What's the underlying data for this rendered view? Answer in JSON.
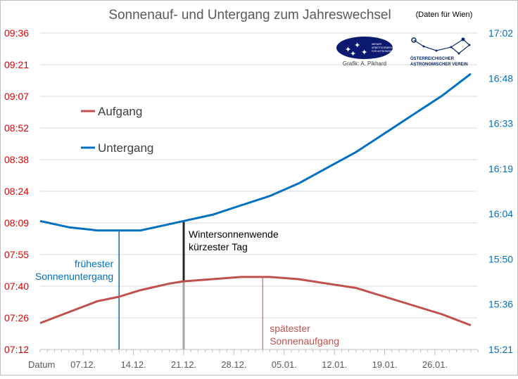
{
  "chart_data": {
    "type": "line",
    "title": "Sonnenauf- und Untergang zum Jahreswechsel",
    "subtitle": "(Daten für Wien)",
    "credit": "Grafik: A. Pikhard",
    "logos": [
      "Wiener Arbeitsgemeinschaft für Astronomie",
      "Österreichischer Astronomischer Verein"
    ],
    "xlabel": "Datum",
    "x_ticks": [
      "07.12.",
      "14.12.",
      "21.12.",
      "28.12.",
      "05.01.",
      "12.01.",
      "19.01.",
      "26.01."
    ],
    "y_left_ticks": [
      "07:12",
      "07:26",
      "07:40",
      "07:55",
      "08:09",
      "08:24",
      "08:38",
      "08:52",
      "09:07",
      "09:21",
      "09:36"
    ],
    "y_right_ticks": [
      "15:21",
      "15:36",
      "15:50",
      "16:04",
      "16:19",
      "16:33",
      "16:48",
      "17:02"
    ],
    "ylim_left": [
      "07:12",
      "09:36"
    ],
    "ylim_right": [
      "15:21",
      "17:02"
    ],
    "grid": true,
    "legend_placement": "top-left",
    "x": [
      "01.12.",
      "05.12.",
      "09.12.",
      "12.12.",
      "15.12.",
      "19.12.",
      "21.12.",
      "25.12.",
      "29.12.",
      "02.01.",
      "06.01.",
      "10.01.",
      "14.01.",
      "18.01.",
      "22.01.",
      "26.01.",
      "30.01."
    ],
    "series": [
      {
        "name": "Aufgang",
        "axis": "left",
        "color": "#c0504d",
        "values": [
          "07:24",
          "07:29",
          "07:34",
          "07:36",
          "07:39",
          "07:42",
          "07:43",
          "07:44",
          "07:45",
          "07:45",
          "07:44",
          "07:42",
          "07:40",
          "07:36",
          "07:32",
          "07:28",
          "07:23"
        ]
      },
      {
        "name": "Untergang",
        "axis": "right",
        "color": "#0070c0",
        "values": [
          "16:02",
          "16:00",
          "15:59",
          "15:59",
          "15:59",
          "16:01",
          "16:02",
          "16:04",
          "16:07",
          "16:10",
          "16:14",
          "16:19",
          "16:24",
          "16:30",
          "16:36",
          "16:42",
          "16:49"
        ]
      }
    ],
    "annotations": [
      {
        "date": "12.12.",
        "text": [
          "frühester",
          "Sonnenuntergang"
        ],
        "color": "#0070c0"
      },
      {
        "date": "21.12.",
        "text": [
          "Wintersonnenwende",
          "kürzester Tag"
        ],
        "color": "#000000"
      },
      {
        "date": "01.01.",
        "text": [
          "spätester",
          "Sonnenaufgang"
        ],
        "color": "#c0504d"
      }
    ]
  }
}
